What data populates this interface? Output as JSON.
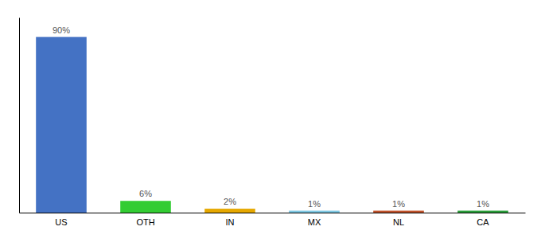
{
  "chart_data": {
    "type": "bar",
    "categories": [
      "US",
      "OTH",
      "IN",
      "MX",
      "NL",
      "CA"
    ],
    "values": [
      90,
      6,
      2,
      1,
      1,
      1
    ],
    "value_labels": [
      "90%",
      "6%",
      "2%",
      "1%",
      "1%",
      "1%"
    ],
    "data_labels": true,
    "colors": [
      "#4472c4",
      "#33cc33",
      "#e6a800",
      "#7ec8e3",
      "#c0522b",
      "#2a9e3a"
    ],
    "ylim": [
      0,
      100
    ],
    "tick_labels": "x"
  }
}
